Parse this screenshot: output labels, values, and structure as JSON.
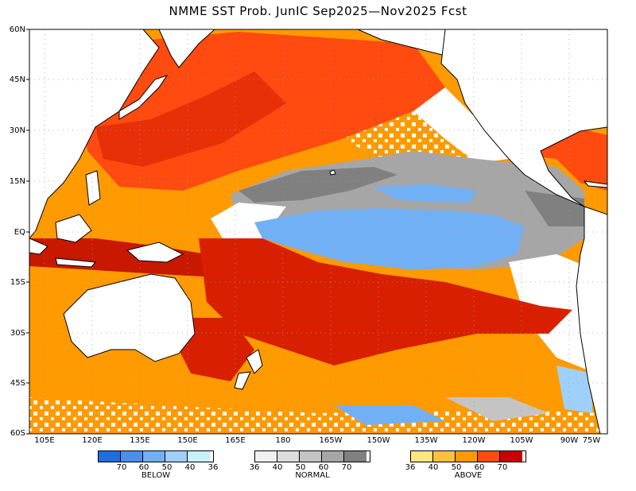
{
  "title": "NMME SST Prob. JunIC   Sep2025—Nov2025 Fcst",
  "lat_labels": [
    "60N",
    "45N",
    "30N",
    "15N",
    "EQ",
    "15S",
    "30S",
    "45S",
    "60S"
  ],
  "lon_labels": [
    "105E",
    "120E",
    "135E",
    "150E",
    "165E",
    "180",
    "165W",
    "150W",
    "135W",
    "120W",
    "105W",
    "90W",
    "75W"
  ],
  "legend": {
    "below": {
      "label": "BELOW",
      "ticks": [
        "70",
        "60",
        "50",
        "40",
        "36"
      ],
      "colors": [
        "#1f6ee0",
        "#4a90ea",
        "#72b0f5",
        "#9ed0fa",
        "#c8f0fc"
      ]
    },
    "normal": {
      "label": "NORMAL",
      "ticks": [
        "36",
        "40",
        "50",
        "60",
        "70"
      ],
      "colors": [
        "#f0f0f0",
        "#dcdcdc",
        "#c4c4c4",
        "#a6a6a6",
        "#808080"
      ]
    },
    "above": {
      "label": "ABOVE",
      "ticks": [
        "36",
        "40",
        "50",
        "60",
        "70"
      ],
      "colors": [
        "#ffe680",
        "#ffc040",
        "#ff9a00",
        "#ff4a10",
        "#c80000"
      ]
    }
  },
  "colors": {
    "above_40": "#ffc040",
    "above_50": "#ff9a00",
    "above_60": "#ff4a10",
    "above_70": "#d81800",
    "normal_50": "#c4c4c4",
    "normal_60": "#a6a6a6",
    "normal_70": "#808080",
    "below_50": "#72b0f5",
    "land": "#ffffff",
    "no_signal": "#ffffff"
  }
}
